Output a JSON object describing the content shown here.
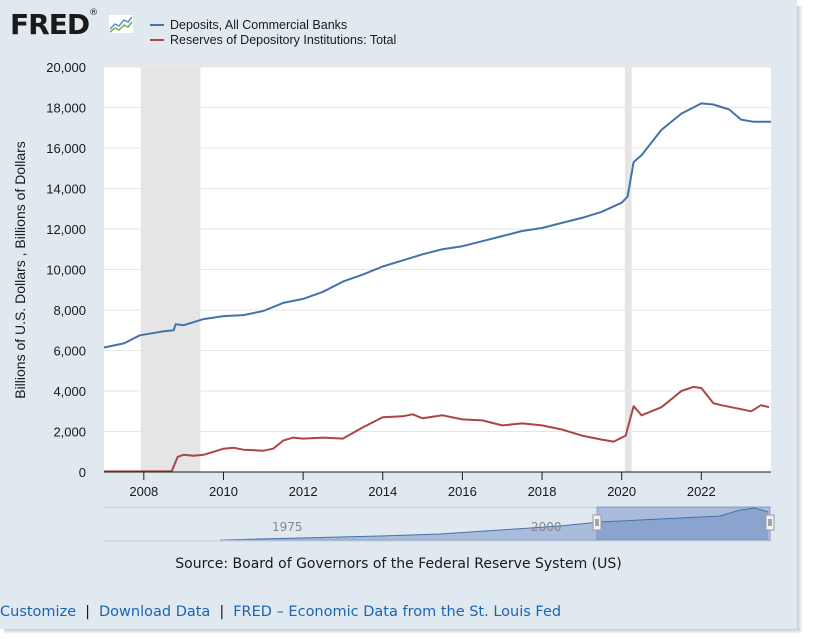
{
  "logo": {
    "text": "FRED",
    "registered": "®"
  },
  "legend": [
    {
      "label": "Deposits, All Commercial Banks",
      "color": "#4572a7"
    },
    {
      "label": "Reserves of Depository Institutions: Total",
      "color": "#aa4643"
    }
  ],
  "navigator": {
    "labels": [
      "1975",
      "2000"
    ]
  },
  "source": "Source: Board of Governors of the Federal Reserve System (US)",
  "footer": {
    "customize": "Customize",
    "download": "Download Data",
    "fred": "FRED – Economic Data from the St. Louis Fed",
    "separator": "|"
  },
  "colors": {
    "background": "#e1e9f0",
    "recession": "#e5e5e5",
    "link": "#1a64b5",
    "navigator_fill": "#6685c2"
  },
  "chart_data": {
    "type": "line",
    "ylabel": "Billions of U.S. Dollars , Billions of Dollars",
    "xlim": [
      2007.0,
      2023.75
    ],
    "ylim": [
      0,
      20000
    ],
    "yticks": [
      0,
      2000,
      4000,
      6000,
      8000,
      10000,
      12000,
      14000,
      16000,
      18000,
      20000
    ],
    "ytick_labels": [
      "0",
      "2,000",
      "4,000",
      "6,000",
      "8,000",
      "10,000",
      "12,000",
      "14,000",
      "16,000",
      "18,000",
      "20,000"
    ],
    "xticks": [
      2008,
      2010,
      2012,
      2014,
      2016,
      2018,
      2020,
      2022
    ],
    "xtick_labels": [
      "2008",
      "2010",
      "2012",
      "2014",
      "2016",
      "2018",
      "2020",
      "2022"
    ],
    "grid": true,
    "legend_position": "top-left",
    "recessions": [
      [
        2007.92,
        2009.42
      ],
      [
        2020.08,
        2020.25
      ]
    ],
    "series": [
      {
        "name": "Deposits, All Commercial Banks",
        "color": "#4572a7",
        "x": [
          2007.0,
          2007.5,
          2007.9,
          2008.5,
          2008.75,
          2008.8,
          2009.0,
          2009.5,
          2010.0,
          2010.5,
          2011.0,
          2011.5,
          2012.0,
          2012.5,
          2013.0,
          2013.5,
          2014.0,
          2014.5,
          2015.0,
          2015.5,
          2016.0,
          2016.5,
          2017.0,
          2017.5,
          2018.0,
          2018.5,
          2019.0,
          2019.5,
          2020.0,
          2020.15,
          2020.3,
          2020.5,
          2021.0,
          2021.5,
          2022.0,
          2022.3,
          2022.7,
          2023.0,
          2023.3,
          2023.75
        ],
        "y": [
          6150,
          6350,
          6750,
          6950,
          7000,
          7300,
          7250,
          7550,
          7700,
          7750,
          7950,
          8350,
          8550,
          8900,
          9400,
          9750,
          10150,
          10450,
          10750,
          11000,
          11150,
          11400,
          11650,
          11900,
          12050,
          12300,
          12550,
          12850,
          13300,
          13600,
          15300,
          15650,
          16900,
          17700,
          18200,
          18150,
          17900,
          17400,
          17300,
          17300
        ]
      },
      {
        "name": "Reserves of Depository Institutions: Total",
        "color": "#aa4643",
        "x": [
          2007.0,
          2008.0,
          2008.7,
          2008.85,
          2009.0,
          2009.25,
          2009.5,
          2009.75,
          2010.0,
          2010.25,
          2010.5,
          2011.0,
          2011.25,
          2011.5,
          2011.75,
          2012.0,
          2012.5,
          2013.0,
          2013.5,
          2014.0,
          2014.5,
          2014.75,
          2015.0,
          2015.5,
          2016.0,
          2016.5,
          2017.0,
          2017.5,
          2018.0,
          2018.5,
          2019.0,
          2019.5,
          2019.8,
          2020.0,
          2020.1,
          2020.3,
          2020.5,
          2021.0,
          2021.5,
          2021.8,
          2022.0,
          2022.3,
          2022.5,
          2023.0,
          2023.25,
          2023.5,
          2023.7
        ],
        "y": [
          30,
          30,
          40,
          750,
          850,
          800,
          850,
          1000,
          1150,
          1200,
          1100,
          1050,
          1150,
          1550,
          1700,
          1650,
          1700,
          1650,
          2200,
          2700,
          2750,
          2850,
          2650,
          2800,
          2600,
          2550,
          2300,
          2400,
          2300,
          2100,
          1800,
          1600,
          1500,
          1700,
          1800,
          3250,
          2800,
          3200,
          4000,
          4200,
          4150,
          3400,
          3300,
          3100,
          3000,
          3300,
          3200
        ]
      }
    ]
  }
}
